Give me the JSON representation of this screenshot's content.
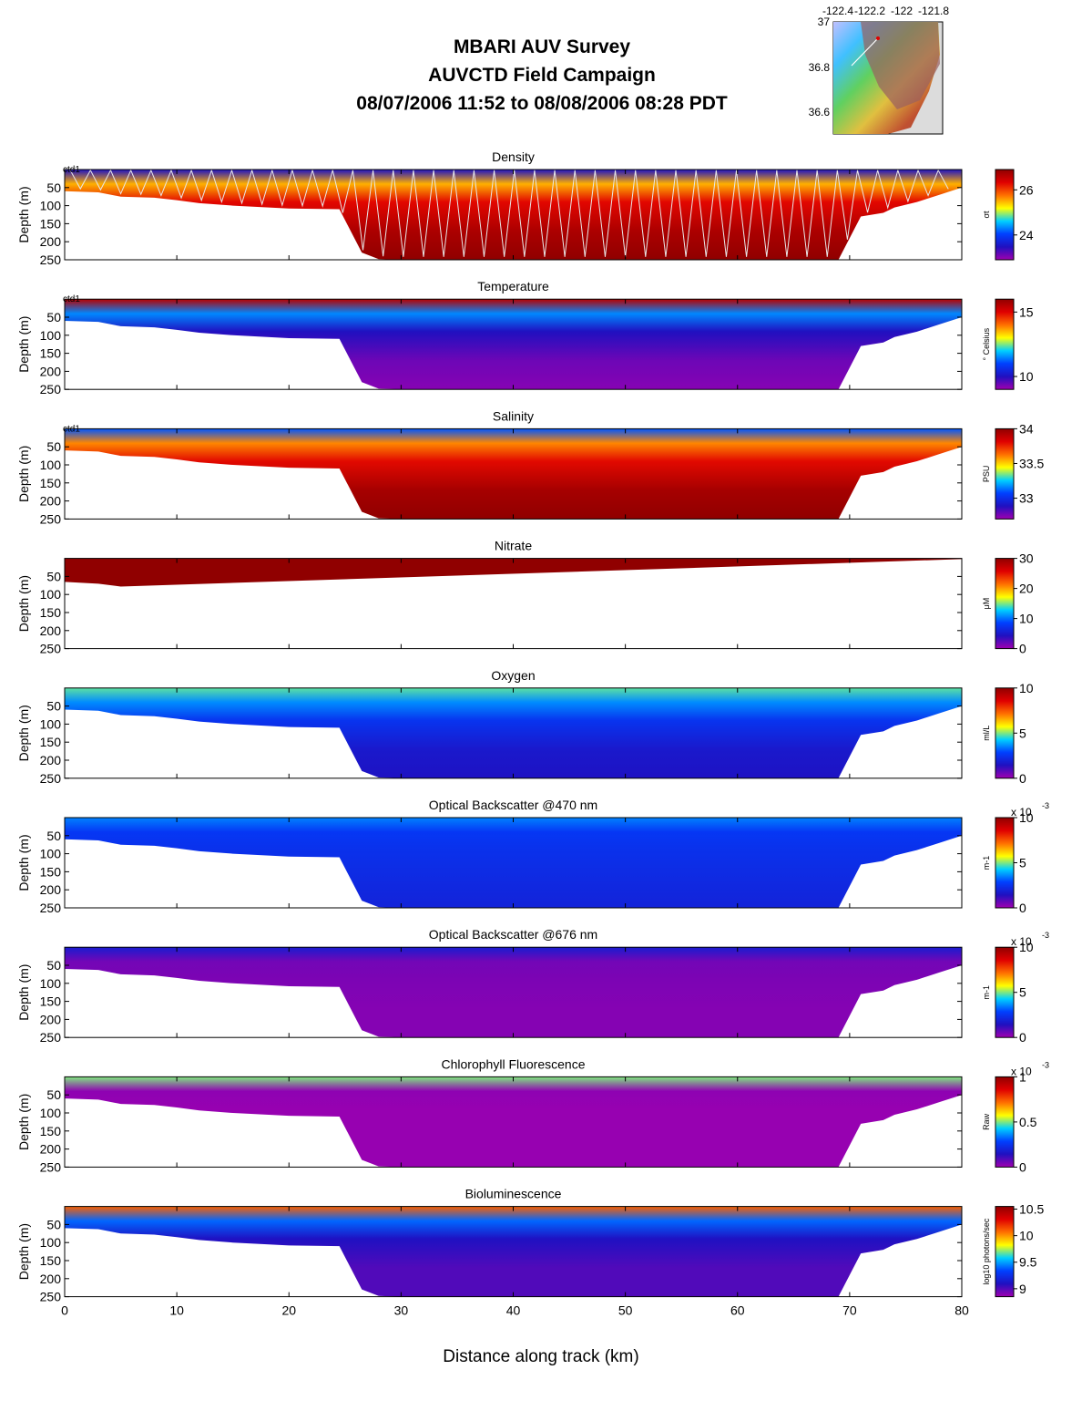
{
  "title": {
    "line1": "MBARI AUV Survey",
    "line2": "AUVCTD Field Campaign",
    "line3": "08/07/2006 11:52  to 08/08/2006 08:28 PDT"
  },
  "inset_map": {
    "x_ticks": [
      "-122.4",
      "-122.2",
      "-122",
      "-121.8"
    ],
    "y_ticks": [
      "37",
      "36.8",
      "36.6"
    ]
  },
  "chart_data": {
    "type": "heatmap",
    "xlabel": "Distance along track (km)",
    "ylabel": "Depth (m)",
    "xlim": [
      0,
      80
    ],
    "x_ticks": [
      0,
      10,
      20,
      30,
      40,
      50,
      60,
      70,
      80
    ],
    "ylim": [
      250,
      0
    ],
    "y_ticks": [
      50,
      100,
      150,
      200,
      250
    ],
    "grid": false,
    "colormap": "jet",
    "colormap_stops": [
      "#a000b0",
      "#2010c0",
      "#0040ff",
      "#00d0ff",
      "#ffff00",
      "#ff7000",
      "#e00000",
      "#900000"
    ],
    "bathymetry": {
      "distance_km": [
        0,
        3,
        5,
        8,
        10,
        12,
        15,
        20,
        24.5,
        26.5,
        28,
        30,
        40,
        50,
        60,
        69,
        71,
        73,
        74,
        76,
        78,
        80
      ],
      "depth_m": [
        60,
        63,
        75,
        78,
        85,
        93,
        100,
        108,
        110,
        230,
        248,
        250,
        250,
        250,
        250,
        250,
        130,
        120,
        105,
        90,
        70,
        50
      ]
    },
    "panels": [
      {
        "title": "Density",
        "units": "σt",
        "cb_range": [
          22.9,
          26.9
        ],
        "cb_ticks": [
          "24",
          "26"
        ],
        "cb_ticks_v": [
          24,
          26
        ],
        "track_label": "ctd1",
        "profile": [
          23.5,
          25.5,
          26.3,
          26.7,
          26.9
        ],
        "yoyo": true
      },
      {
        "title": "Temperature",
        "units": "° Celsius",
        "cb_range": [
          9,
          16
        ],
        "cb_ticks": [
          "10",
          "15"
        ],
        "cb_ticks_v": [
          10,
          15
        ],
        "track_label": "ctd1",
        "profile": [
          15.5,
          11.5,
          10.0,
          9.4,
          9.2
        ]
      },
      {
        "title": "Salinity",
        "units": "PSU",
        "cb_range": [
          32.7,
          34
        ],
        "cb_ticks": [
          "33",
          "33.5",
          "34"
        ],
        "cb_ticks_v": [
          33,
          33.5,
          34
        ],
        "track_label": "ctd1",
        "profile": [
          33.1,
          33.6,
          33.8,
          33.95,
          34
        ]
      },
      {
        "title": "Nitrate",
        "units": "μM",
        "cb_range": [
          0,
          30
        ],
        "cb_ticks": [
          "0",
          "10",
          "20",
          "30"
        ],
        "cb_ticks_v": [
          0,
          10,
          20,
          30
        ],
        "track_label": "",
        "profile": [
          30,
          30,
          30,
          30,
          30
        ],
        "nitrate": true
      },
      {
        "title": "Oxygen",
        "units": "ml/L",
        "cb_range": [
          0,
          10
        ],
        "cb_ticks": [
          "0",
          "5",
          "10"
        ],
        "cb_ticks_v": [
          0,
          5,
          10
        ],
        "track_label": "",
        "profile": [
          4.8,
          3.6,
          2.5,
          1.7,
          1.5
        ]
      },
      {
        "title": "Optical Backscatter @470 nm",
        "units": "m-1",
        "exponent": "x 10",
        "exponent_power": "-3",
        "cb_range": [
          0,
          10
        ],
        "cb_ticks": [
          "0",
          "5",
          "10"
        ],
        "cb_ticks_v": [
          0,
          5,
          10
        ],
        "track_label": "",
        "profile": [
          3.5,
          2.6,
          2.4,
          2.2,
          2.0
        ]
      },
      {
        "title": "Optical Backscatter @676 nm",
        "units": "m-1",
        "exponent": "x 10",
        "exponent_power": "-3",
        "cb_range": [
          0,
          10
        ],
        "cb_ticks": [
          "0",
          "5",
          "10"
        ],
        "cb_ticks_v": [
          0,
          5,
          10
        ],
        "track_label": "",
        "profile": [
          1.8,
          0.5,
          0.4,
          0.3,
          0.3
        ]
      },
      {
        "title": "Chlorophyll Fluorescence",
        "units": "Raw",
        "exponent": "x 10",
        "exponent_power": "-3",
        "cb_range": [
          0,
          1
        ],
        "cb_ticks": [
          "0",
          "0.5",
          "1"
        ],
        "cb_ticks_v": [
          0,
          0.5,
          1
        ],
        "track_label": "",
        "profile": [
          0.5,
          0.02,
          0.01,
          0.01,
          0.01
        ]
      },
      {
        "title": "Bioluminescence",
        "units": "log10 photons/sec",
        "cb_range": [
          8.85,
          10.55
        ],
        "cb_ticks": [
          "9",
          "9.5",
          "10",
          "10.5"
        ],
        "cb_ticks_v": [
          9,
          9.5,
          10,
          10.5
        ],
        "track_label": "",
        "profile": [
          10.1,
          9.4,
          9.1,
          9.0,
          9.0
        ]
      }
    ]
  }
}
